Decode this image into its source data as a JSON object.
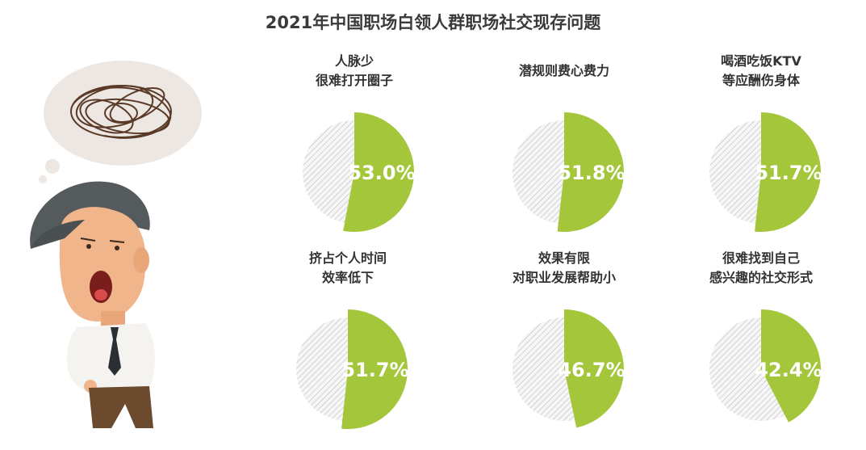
{
  "title": "2021年中国职场白领人群职场社交现存问题",
  "chart_data": {
    "type": "pie",
    "title": "2021年中国职场白领人群职场社交现存问题",
    "series_color": "#a4c63a",
    "remainder_style": "grey hatched",
    "items": [
      {
        "label_lines": [
          "人脉少",
          "很难打开圈子"
        ],
        "value": 53.0,
        "display": "53.0%"
      },
      {
        "label_lines": [
          "潜规则费心费力"
        ],
        "value": 51.8,
        "display": "51.8%"
      },
      {
        "label_lines": [
          "喝酒吃饭KTV",
          "等应酬伤身体"
        ],
        "value": 51.7,
        "display": "51.7%"
      },
      {
        "label_lines": [
          "挤占个人时间",
          "效率低下"
        ],
        "value": 51.7,
        "display": "51.7%"
      },
      {
        "label_lines": [
          "效果有限",
          "对职业发展帮助小"
        ],
        "value": 46.7,
        "display": "46.7%"
      },
      {
        "label_lines": [
          "很难找到自己",
          "感兴趣的社交形式"
        ],
        "value": 42.4,
        "display": "42.4%"
      }
    ]
  }
}
